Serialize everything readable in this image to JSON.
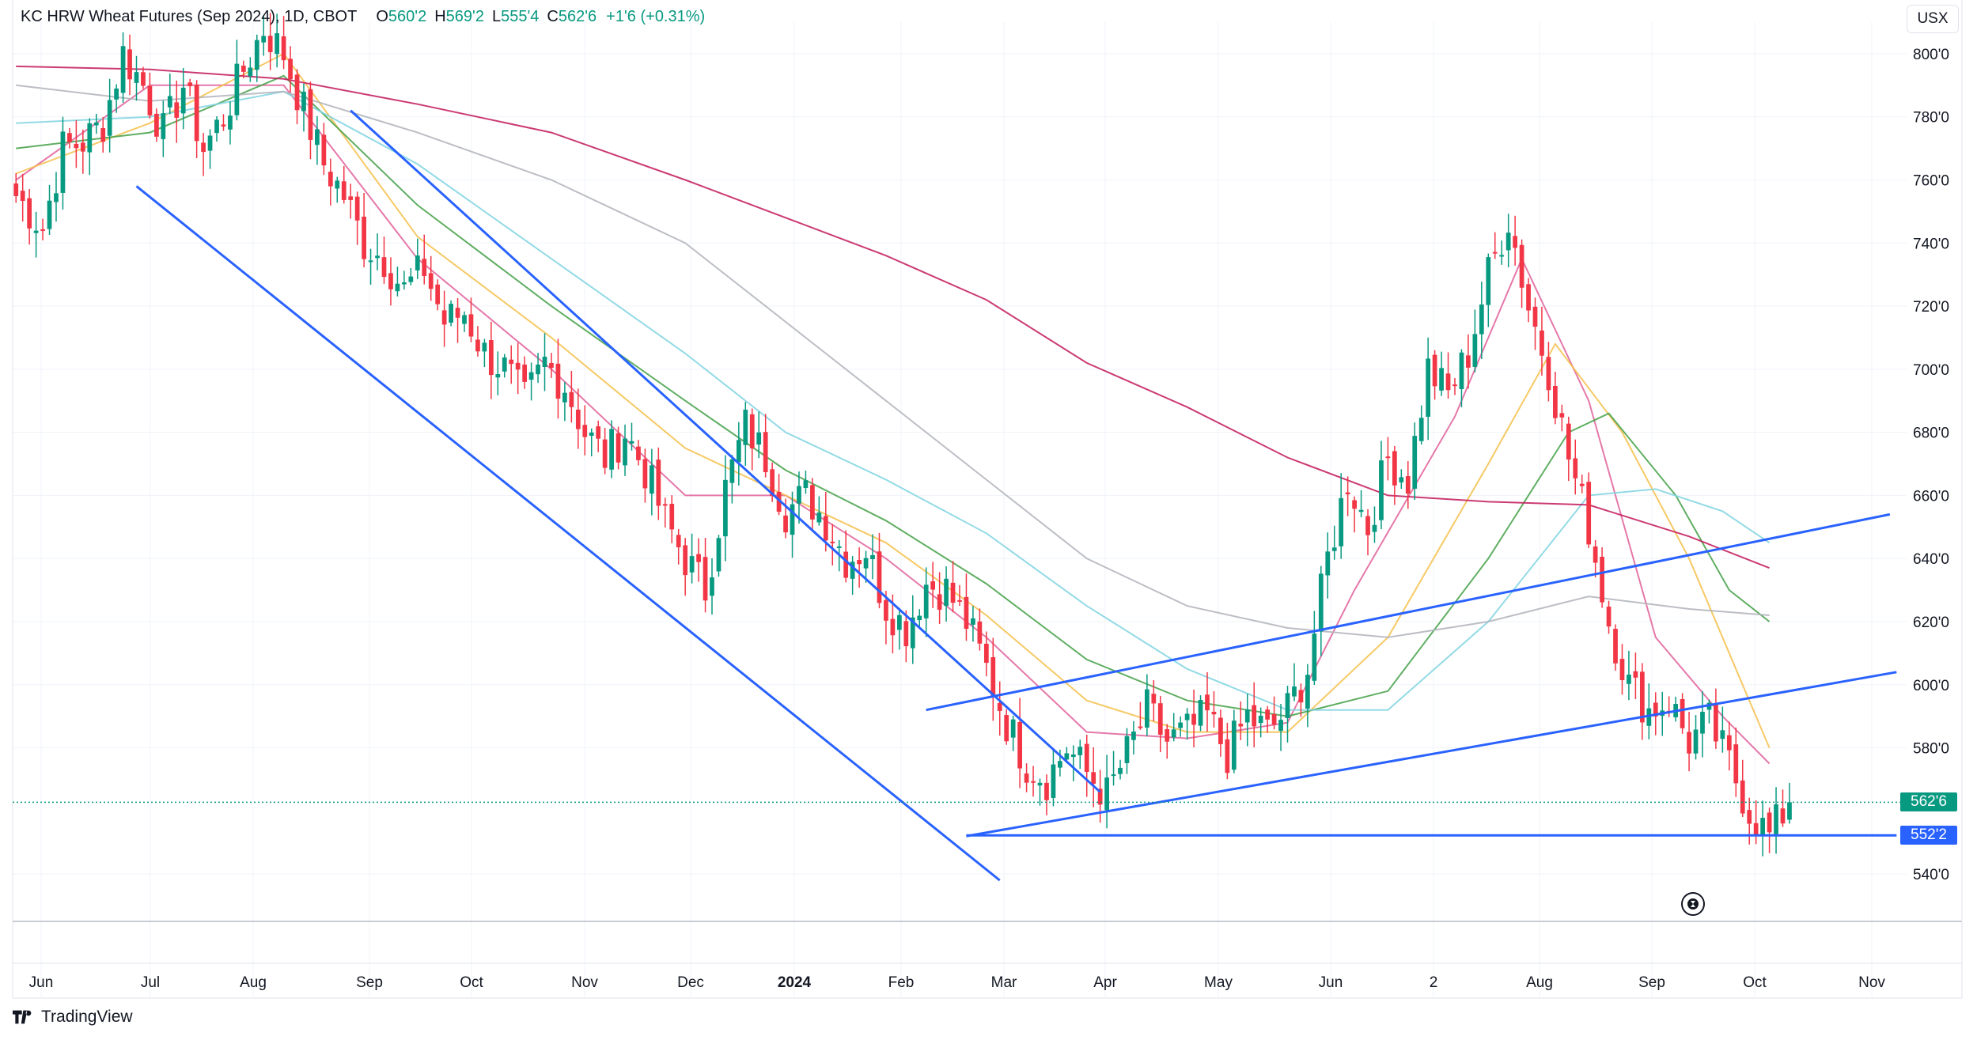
{
  "legend": {
    "symbol": "KC HRW Wheat Futures (Sep 2024), 1D, CBOT",
    "o_label": "O",
    "o_value": "560'2",
    "h_label": "H",
    "h_value": "569'2",
    "l_label": "L",
    "l_value": "555'4",
    "c_label": "C",
    "c_value": "562'6",
    "change": "+1'6 (+0.31%)"
  },
  "currency": "USX",
  "brand": "TradingView",
  "price_tags": {
    "last": "562'6",
    "level": "552'2"
  },
  "colors": {
    "up": "#089981",
    "down": "#f23645",
    "trendline": "#2962ff",
    "ma_pink": "#e0609a",
    "ma_orange": "#f5c04a",
    "ma_green": "#43a047",
    "ma_cyan": "#7fd3e0",
    "ma_gray": "#b0b3bb",
    "ma_magenta": "#c2185b"
  },
  "chart_data": {
    "type": "candlestick",
    "y_axis": {
      "min": 525,
      "max": 810,
      "ticks": [
        "540'0",
        "580'0",
        "600'0",
        "620'0",
        "640'0",
        "660'0",
        "680'0",
        "700'0",
        "720'0",
        "740'0",
        "760'0",
        "780'0",
        "800'0"
      ]
    },
    "x_axis": {
      "labels": [
        "Jun",
        "Jul",
        "Aug",
        "Sep",
        "Oct",
        "Nov",
        "Dec",
        "2024",
        "Feb",
        "Mar",
        "Apr",
        "May",
        "Jun",
        "2",
        "Aug",
        "Sep",
        "Oct",
        "Nov"
      ]
    },
    "last_price": 562.75,
    "support_level": 552.25,
    "price_path": [
      [
        0,
        755
      ],
      [
        4,
        745
      ],
      [
        7,
        770
      ],
      [
        10,
        772
      ],
      [
        13,
        778
      ],
      [
        16,
        800
      ],
      [
        19,
        790
      ],
      [
        22,
        775
      ],
      [
        25,
        790
      ],
      [
        28,
        770
      ],
      [
        31,
        780
      ],
      [
        34,
        795
      ],
      [
        37,
        808
      ],
      [
        40,
        800
      ],
      [
        43,
        782
      ],
      [
        46,
        765
      ],
      [
        49,
        755
      ],
      [
        52,
        740
      ],
      [
        55,
        735
      ],
      [
        58,
        725
      ],
      [
        61,
        732
      ],
      [
        64,
        715
      ],
      [
        67,
        718
      ],
      [
        70,
        705
      ],
      [
        73,
        700
      ],
      [
        76,
        690
      ],
      [
        79,
        702
      ],
      [
        82,
        695
      ],
      [
        85,
        680
      ],
      [
        88,
        672
      ],
      [
        91,
        680
      ],
      [
        94,
        668
      ],
      [
        97,
        652
      ],
      [
        100,
        640
      ],
      [
        103,
        630
      ],
      [
        106,
        662
      ],
      [
        109,
        682
      ],
      [
        112,
        672
      ],
      [
        115,
        655
      ],
      [
        118,
        660
      ],
      [
        121,
        652
      ],
      [
        124,
        640
      ],
      [
        127,
        643
      ],
      [
        130,
        625
      ],
      [
        133,
        618
      ],
      [
        136,
        632
      ],
      [
        139,
        630
      ],
      [
        142,
        620
      ],
      [
        145,
        605
      ],
      [
        148,
        588
      ],
      [
        151,
        575
      ],
      [
        154,
        570
      ],
      [
        157,
        580
      ],
      [
        160,
        572
      ],
      [
        163,
        565
      ],
      [
        166,
        578
      ],
      [
        169,
        592
      ],
      [
        172,
        582
      ],
      [
        175,
        585
      ],
      [
        178,
        590
      ],
      [
        181,
        578
      ],
      [
        184,
        590
      ],
      [
        187,
        585
      ],
      [
        190,
        592
      ],
      [
        193,
        605
      ],
      [
        196,
        640
      ],
      [
        199,
        665
      ],
      [
        202,
        650
      ],
      [
        205,
        672
      ],
      [
        208,
        665
      ],
      [
        211,
        700
      ],
      [
        214,
        692
      ],
      [
        217,
        705
      ],
      [
        220,
        730
      ],
      [
        223,
        748
      ],
      [
        226,
        720
      ],
      [
        229,
        700
      ],
      [
        232,
        672
      ],
      [
        235,
        650
      ],
      [
        238,
        620
      ],
      [
        241,
        600
      ],
      [
        244,
        592
      ],
      [
        247,
        595
      ],
      [
        250,
        582
      ],
      [
        253,
        588
      ],
      [
        256,
        575
      ],
      [
        259,
        560
      ],
      [
        262,
        552
      ],
      [
        265,
        562.75
      ]
    ],
    "moving_averages": [
      {
        "color_key": "ma_pink",
        "points": [
          [
            0,
            760
          ],
          [
            20,
            790
          ],
          [
            40,
            790
          ],
          [
            60,
            735
          ],
          [
            80,
            700
          ],
          [
            100,
            660
          ],
          [
            115,
            660
          ],
          [
            130,
            640
          ],
          [
            145,
            615
          ],
          [
            160,
            585
          ],
          [
            175,
            583
          ],
          [
            190,
            588
          ],
          [
            200,
            630
          ],
          [
            215,
            685
          ],
          [
            225,
            735
          ],
          [
            235,
            690
          ],
          [
            245,
            615
          ],
          [
            255,
            590
          ],
          [
            262,
            575
          ]
        ]
      },
      {
        "color_key": "ma_orange",
        "points": [
          [
            0,
            762
          ],
          [
            20,
            778
          ],
          [
            40,
            800
          ],
          [
            60,
            742
          ],
          [
            80,
            710
          ],
          [
            100,
            675
          ],
          [
            115,
            660
          ],
          [
            130,
            645
          ],
          [
            145,
            622
          ],
          [
            160,
            595
          ],
          [
            175,
            585
          ],
          [
            190,
            585
          ],
          [
            205,
            615
          ],
          [
            220,
            670
          ],
          [
            230,
            708
          ],
          [
            240,
            680
          ],
          [
            250,
            640
          ],
          [
            258,
            600
          ],
          [
            262,
            580
          ]
        ]
      },
      {
        "color_key": "ma_green",
        "points": [
          [
            0,
            770
          ],
          [
            20,
            775
          ],
          [
            40,
            793
          ],
          [
            60,
            752
          ],
          [
            80,
            720
          ],
          [
            100,
            690
          ],
          [
            115,
            668
          ],
          [
            130,
            652
          ],
          [
            145,
            632
          ],
          [
            160,
            608
          ],
          [
            175,
            595
          ],
          [
            190,
            590
          ],
          [
            205,
            598
          ],
          [
            220,
            640
          ],
          [
            232,
            680
          ],
          [
            238,
            686
          ],
          [
            248,
            660
          ],
          [
            256,
            630
          ],
          [
            262,
            620
          ]
        ]
      },
      {
        "color_key": "ma_cyan",
        "points": [
          [
            0,
            778
          ],
          [
            20,
            780
          ],
          [
            40,
            788
          ],
          [
            60,
            765
          ],
          [
            80,
            735
          ],
          [
            100,
            705
          ],
          [
            115,
            680
          ],
          [
            130,
            665
          ],
          [
            145,
            648
          ],
          [
            160,
            625
          ],
          [
            175,
            605
          ],
          [
            190,
            592
          ],
          [
            205,
            592
          ],
          [
            220,
            620
          ],
          [
            235,
            660
          ],
          [
            245,
            662
          ],
          [
            255,
            655
          ],
          [
            262,
            645
          ]
        ]
      },
      {
        "color_key": "ma_gray",
        "points": [
          [
            0,
            790
          ],
          [
            20,
            785
          ],
          [
            40,
            788
          ],
          [
            60,
            775
          ],
          [
            80,
            760
          ],
          [
            100,
            740
          ],
          [
            115,
            715
          ],
          [
            130,
            690
          ],
          [
            145,
            665
          ],
          [
            160,
            640
          ],
          [
            175,
            625
          ],
          [
            190,
            618
          ],
          [
            205,
            615
          ],
          [
            220,
            620
          ],
          [
            235,
            628
          ],
          [
            250,
            624
          ],
          [
            262,
            622
          ]
        ]
      },
      {
        "color_key": "ma_magenta",
        "points": [
          [
            0,
            796
          ],
          [
            20,
            795
          ],
          [
            40,
            792
          ],
          [
            60,
            784
          ],
          [
            80,
            775
          ],
          [
            100,
            760
          ],
          [
            115,
            748
          ],
          [
            130,
            736
          ],
          [
            145,
            722
          ],
          [
            160,
            702
          ],
          [
            175,
            688
          ],
          [
            190,
            672
          ],
          [
            205,
            660
          ],
          [
            220,
            658
          ],
          [
            235,
            657
          ],
          [
            250,
            647
          ],
          [
            262,
            637
          ]
        ]
      }
    ],
    "trendlines": [
      {
        "from": [
          50,
          782
        ],
        "to": [
          162,
          566
        ]
      },
      {
        "from": [
          18,
          758
        ],
        "to": [
          147,
          538
        ]
      },
      {
        "from": [
          136,
          592
        ],
        "to": [
          280,
          654
        ]
      },
      {
        "from": [
          142,
          552
        ],
        "to": [
          281,
          604
        ]
      },
      {
        "from": [
          142,
          552.25
        ],
        "to": [
          281,
          552.25
        ]
      }
    ]
  }
}
